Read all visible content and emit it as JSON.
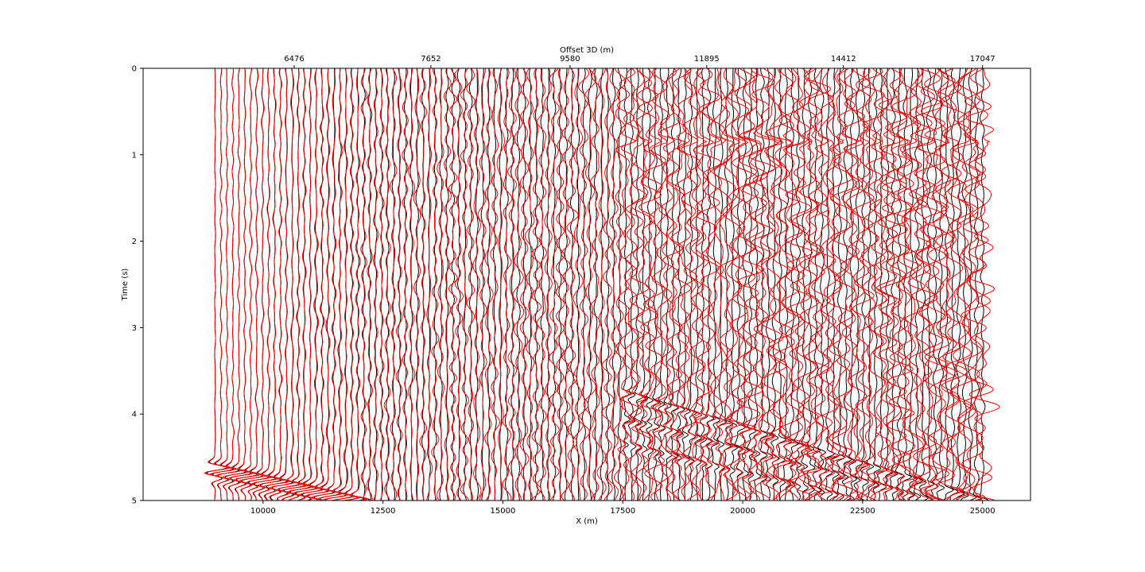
{
  "chart_data": {
    "type": "line",
    "subtype": "seismic-wiggle-traces",
    "xlabel": "X (m)",
    "ylabel": "Time (s)",
    "x2label": "Offset 3D (m)",
    "xlim": [
      7500,
      26000
    ],
    "ylim": [
      5,
      0
    ],
    "y_inverted": true,
    "x_ticks": [
      10000,
      12500,
      15000,
      17500,
      20000,
      22500,
      25000
    ],
    "x_tick_labels": [
      "10000",
      "12500",
      "15000",
      "17500",
      "20000",
      "22500",
      "25000"
    ],
    "y_ticks": [
      0,
      1,
      2,
      3,
      4,
      5
    ],
    "y_tick_labels": [
      "0",
      "1",
      "2",
      "3",
      "4",
      "5"
    ],
    "x2_tick_positions": [
      10650,
      13500,
      16400,
      19250,
      22100,
      25000
    ],
    "x2_tick_labels": [
      "6476",
      "7652",
      "9580",
      "11895",
      "14412",
      "17047"
    ],
    "trace_x_start": 9000,
    "trace_x_end": 25000,
    "trace_count": 130,
    "grid": false,
    "series": [
      {
        "color": "#000000"
      },
      {
        "color": "#ff0000"
      }
    ]
  }
}
